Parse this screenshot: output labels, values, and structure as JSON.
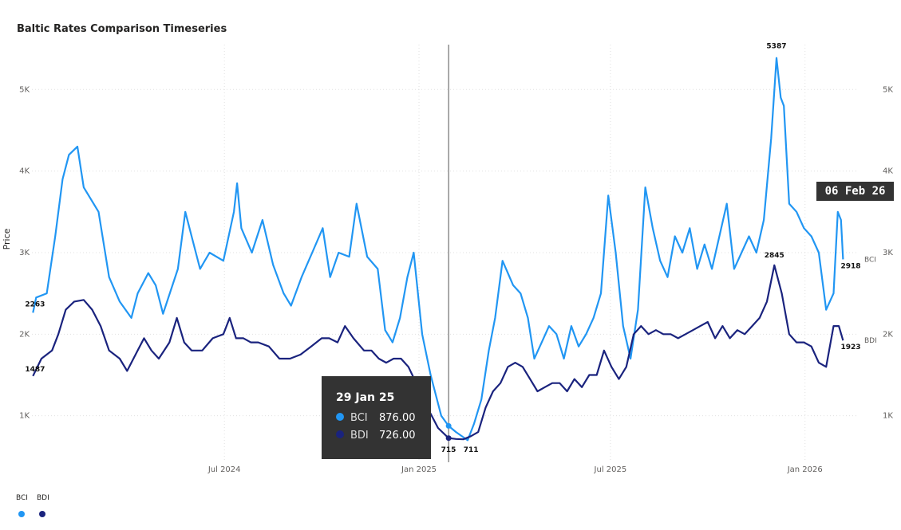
{
  "title": "Baltic Rates Comparison Timeseries",
  "y_axis_label": "Price",
  "colors": {
    "BCI": "#2196F3",
    "BDI": "#1A237E",
    "grid": "#e0e0e0",
    "crosshair": "#555555"
  },
  "tooltip": {
    "date": "29 Jan 25",
    "rows": [
      {
        "name": "BCI",
        "value": "876.00"
      },
      {
        "name": "BDI",
        "value": "726.00"
      }
    ]
  },
  "date_flag": "06 Feb 26",
  "legend": [
    {
      "name": "BCI"
    },
    {
      "name": "BDI"
    }
  ],
  "chart_data": {
    "type": "line",
    "title": "Baltic Rates Comparison Timeseries",
    "ylabel": "Price",
    "xlabel": "",
    "y_ticks": [
      "1K",
      "2K",
      "3K",
      "4K",
      "5K"
    ],
    "y_tick_values": [
      1000,
      2000,
      3000,
      4000,
      5000
    ],
    "ylim": [
      430,
      5550
    ],
    "x_ticks": [
      "Jul 2024",
      "Jan 2025",
      "Jul 2025",
      "Jan 2026"
    ],
    "x_tick_dates": [
      "2024-07-01",
      "2025-01-01",
      "2025-07-01",
      "2026-01-01"
    ],
    "xlim": [
      "2024-01-01",
      "2026-02-20"
    ],
    "grid": true,
    "legend_position": "bottom-left",
    "crosshair_date": "2025-01-29",
    "series": [
      {
        "name": "BCI",
        "data": [
          [
            "2024-01-02",
            2263
          ],
          [
            "2024-01-05",
            2450
          ],
          [
            "2024-01-15",
            2500
          ],
          [
            "2024-01-23",
            3200
          ],
          [
            "2024-01-30",
            3900
          ],
          [
            "2024-02-05",
            4200
          ],
          [
            "2024-02-13",
            4300
          ],
          [
            "2024-02-19",
            3800
          ],
          [
            "2024-03-04",
            3500
          ],
          [
            "2024-03-14",
            2700
          ],
          [
            "2024-03-24",
            2400
          ],
          [
            "2024-04-04",
            2200
          ],
          [
            "2024-04-10",
            2500
          ],
          [
            "2024-04-20",
            2750
          ],
          [
            "2024-04-27",
            2600
          ],
          [
            "2024-05-04",
            2250
          ],
          [
            "2024-05-18",
            2800
          ],
          [
            "2024-05-25",
            3500
          ],
          [
            "2024-05-31",
            3200
          ],
          [
            "2024-06-08",
            2800
          ],
          [
            "2024-06-17",
            3000
          ],
          [
            "2024-06-30",
            2900
          ],
          [
            "2024-07-10",
            3500
          ],
          [
            "2024-07-13",
            3850
          ],
          [
            "2024-07-17",
            3300
          ],
          [
            "2024-07-27",
            3000
          ],
          [
            "2024-08-06",
            3400
          ],
          [
            "2024-08-16",
            2850
          ],
          [
            "2024-08-26",
            2500
          ],
          [
            "2024-09-02",
            2350
          ],
          [
            "2024-09-12",
            2700
          ],
          [
            "2024-09-22",
            3000
          ],
          [
            "2024-10-02",
            3300
          ],
          [
            "2024-10-09",
            2700
          ],
          [
            "2024-10-17",
            3000
          ],
          [
            "2024-10-27",
            2950
          ],
          [
            "2024-11-03",
            3600
          ],
          [
            "2024-11-13",
            2950
          ],
          [
            "2024-11-23",
            2800
          ],
          [
            "2024-11-30",
            2050
          ],
          [
            "2024-12-07",
            1900
          ],
          [
            "2024-12-14",
            2200
          ],
          [
            "2024-12-21",
            2700
          ],
          [
            "2024-12-27",
            3000
          ],
          [
            "2025-01-04",
            2000
          ],
          [
            "2025-01-12",
            1500
          ],
          [
            "2025-01-22",
            1000
          ],
          [
            "2025-01-29",
            876
          ],
          [
            "2025-02-05",
            800
          ],
          [
            "2025-02-16",
            700
          ],
          [
            "2025-02-22",
            900
          ],
          [
            "2025-03-01",
            1200
          ],
          [
            "2025-03-08",
            1800
          ],
          [
            "2025-03-14",
            2200
          ],
          [
            "2025-03-21",
            2900
          ],
          [
            "2025-03-31",
            2600
          ],
          [
            "2025-04-07",
            2500
          ],
          [
            "2025-04-14",
            2200
          ],
          [
            "2025-04-20",
            1700
          ],
          [
            "2025-04-27",
            1900
          ],
          [
            "2025-05-04",
            2100
          ],
          [
            "2025-05-11",
            2000
          ],
          [
            "2025-05-18",
            1700
          ],
          [
            "2025-05-25",
            2100
          ],
          [
            "2025-06-01",
            1850
          ],
          [
            "2025-06-08",
            2000
          ],
          [
            "2025-06-15",
            2200
          ],
          [
            "2025-06-22",
            2500
          ],
          [
            "2025-06-29",
            3700
          ],
          [
            "2025-07-06",
            3000
          ],
          [
            "2025-07-13",
            2100
          ],
          [
            "2025-07-20",
            1700
          ],
          [
            "2025-07-27",
            2300
          ],
          [
            "2025-08-03",
            3800
          ],
          [
            "2025-08-10",
            3300
          ],
          [
            "2025-08-17",
            2900
          ],
          [
            "2025-08-24",
            2700
          ],
          [
            "2025-08-31",
            3200
          ],
          [
            "2025-09-07",
            3000
          ],
          [
            "2025-09-14",
            3300
          ],
          [
            "2025-09-21",
            2800
          ],
          [
            "2025-09-28",
            3100
          ],
          [
            "2025-10-05",
            2800
          ],
          [
            "2025-10-12",
            3200
          ],
          [
            "2025-10-19",
            3600
          ],
          [
            "2025-10-26",
            2800
          ],
          [
            "2025-11-02",
            3000
          ],
          [
            "2025-11-09",
            3200
          ],
          [
            "2025-11-16",
            3000
          ],
          [
            "2025-11-23",
            3400
          ],
          [
            "2025-11-30",
            4400
          ],
          [
            "2025-12-05",
            5387
          ],
          [
            "2025-12-09",
            4900
          ],
          [
            "2025-12-12",
            4800
          ],
          [
            "2025-12-17",
            3600
          ],
          [
            "2025-12-24",
            3500
          ],
          [
            "2025-12-31",
            3300
          ],
          [
            "2026-01-07",
            3200
          ],
          [
            "2026-01-14",
            3000
          ],
          [
            "2026-01-21",
            2300
          ],
          [
            "2026-01-28",
            2500
          ],
          [
            "2026-02-01",
            3500
          ],
          [
            "2026-02-04",
            3400
          ],
          [
            "2026-02-06",
            2918
          ]
        ]
      },
      {
        "name": "BDI",
        "data": [
          [
            "2024-01-02",
            1487
          ],
          [
            "2024-01-10",
            1700
          ],
          [
            "2024-01-20",
            1800
          ],
          [
            "2024-01-26",
            2000
          ],
          [
            "2024-02-02",
            2300
          ],
          [
            "2024-02-10",
            2400
          ],
          [
            "2024-02-19",
            2420
          ],
          [
            "2024-02-27",
            2300
          ],
          [
            "2024-03-06",
            2100
          ],
          [
            "2024-03-14",
            1800
          ],
          [
            "2024-03-24",
            1700
          ],
          [
            "2024-03-31",
            1550
          ],
          [
            "2024-04-10",
            1800
          ],
          [
            "2024-04-16",
            1950
          ],
          [
            "2024-04-23",
            1800
          ],
          [
            "2024-04-30",
            1700
          ],
          [
            "2024-05-10",
            1900
          ],
          [
            "2024-05-17",
            2200
          ],
          [
            "2024-05-24",
            1900
          ],
          [
            "2024-05-31",
            1800
          ],
          [
            "2024-06-10",
            1800
          ],
          [
            "2024-06-20",
            1950
          ],
          [
            "2024-06-30",
            2000
          ],
          [
            "2024-07-06",
            2200
          ],
          [
            "2024-07-12",
            1950
          ],
          [
            "2024-07-19",
            1950
          ],
          [
            "2024-07-26",
            1900
          ],
          [
            "2024-08-02",
            1900
          ],
          [
            "2024-08-12",
            1850
          ],
          [
            "2024-08-22",
            1700
          ],
          [
            "2024-09-01",
            1700
          ],
          [
            "2024-09-11",
            1750
          ],
          [
            "2024-09-21",
            1850
          ],
          [
            "2024-10-01",
            1950
          ],
          [
            "2024-10-08",
            1950
          ],
          [
            "2024-10-16",
            1900
          ],
          [
            "2024-10-23",
            2100
          ],
          [
            "2024-10-31",
            1950
          ],
          [
            "2024-11-10",
            1800
          ],
          [
            "2024-11-17",
            1800
          ],
          [
            "2024-11-24",
            1700
          ],
          [
            "2024-12-01",
            1650
          ],
          [
            "2024-12-08",
            1700
          ],
          [
            "2024-12-15",
            1700
          ],
          [
            "2024-12-22",
            1600
          ],
          [
            "2025-01-02",
            1300
          ],
          [
            "2025-01-09",
            1100
          ],
          [
            "2025-01-19",
            850
          ],
          [
            "2025-01-29",
            726
          ],
          [
            "2025-02-05",
            715
          ],
          [
            "2025-02-12",
            711
          ],
          [
            "2025-02-19",
            750
          ],
          [
            "2025-02-26",
            800
          ],
          [
            "2025-03-05",
            1100
          ],
          [
            "2025-03-12",
            1300
          ],
          [
            "2025-03-19",
            1400
          ],
          [
            "2025-03-26",
            1600
          ],
          [
            "2025-04-02",
            1650
          ],
          [
            "2025-04-09",
            1600
          ],
          [
            "2025-04-16",
            1450
          ],
          [
            "2025-04-23",
            1300
          ],
          [
            "2025-04-30",
            1350
          ],
          [
            "2025-05-07",
            1400
          ],
          [
            "2025-05-14",
            1400
          ],
          [
            "2025-05-21",
            1300
          ],
          [
            "2025-05-28",
            1450
          ],
          [
            "2025-06-04",
            1350
          ],
          [
            "2025-06-11",
            1500
          ],
          [
            "2025-06-18",
            1500
          ],
          [
            "2025-06-25",
            1800
          ],
          [
            "2025-07-02",
            1600
          ],
          [
            "2025-07-09",
            1450
          ],
          [
            "2025-07-16",
            1600
          ],
          [
            "2025-07-23",
            2000
          ],
          [
            "2025-07-30",
            2100
          ],
          [
            "2025-08-06",
            2000
          ],
          [
            "2025-08-13",
            2050
          ],
          [
            "2025-08-20",
            2000
          ],
          [
            "2025-08-27",
            2000
          ],
          [
            "2025-09-03",
            1950
          ],
          [
            "2025-09-10",
            2000
          ],
          [
            "2025-09-17",
            2050
          ],
          [
            "2025-09-24",
            2100
          ],
          [
            "2025-10-01",
            2150
          ],
          [
            "2025-10-08",
            1950
          ],
          [
            "2025-10-15",
            2100
          ],
          [
            "2025-10-22",
            1950
          ],
          [
            "2025-10-29",
            2050
          ],
          [
            "2025-11-05",
            2000
          ],
          [
            "2025-11-12",
            2100
          ],
          [
            "2025-11-19",
            2200
          ],
          [
            "2025-11-26",
            2400
          ],
          [
            "2025-12-03",
            2845
          ],
          [
            "2025-12-10",
            2500
          ],
          [
            "2025-12-17",
            2000
          ],
          [
            "2025-12-24",
            1900
          ],
          [
            "2025-12-31",
            1900
          ],
          [
            "2026-01-07",
            1850
          ],
          [
            "2026-01-14",
            1650
          ],
          [
            "2026-01-21",
            1600
          ],
          [
            "2026-01-28",
            2100
          ],
          [
            "2026-02-02",
            2100
          ],
          [
            "2026-02-06",
            1923
          ]
        ]
      }
    ],
    "annotations": [
      {
        "text": "2263",
        "series": "BCI",
        "date": "2024-01-02",
        "value": 2263
      },
      {
        "text": "1487",
        "series": "BDI",
        "date": "2024-01-02",
        "value": 1487
      },
      {
        "text": "715",
        "series": "BDI",
        "date": "2025-02-05",
        "value": 715
      },
      {
        "text": "711",
        "series": "BDI",
        "date": "2025-02-12",
        "value": 711
      },
      {
        "text": "5387",
        "series": "BCI",
        "date": "2025-12-05",
        "value": 5387
      },
      {
        "text": "2845",
        "series": "BDI",
        "date": "2025-12-03",
        "value": 2845
      },
      {
        "text": "2918",
        "series": "BCI",
        "date": "2026-02-06",
        "value": 2918
      },
      {
        "text": "1923",
        "series": "BDI",
        "date": "2026-02-06",
        "value": 1923
      }
    ],
    "end_labels": [
      "BCI",
      "BDI"
    ]
  }
}
